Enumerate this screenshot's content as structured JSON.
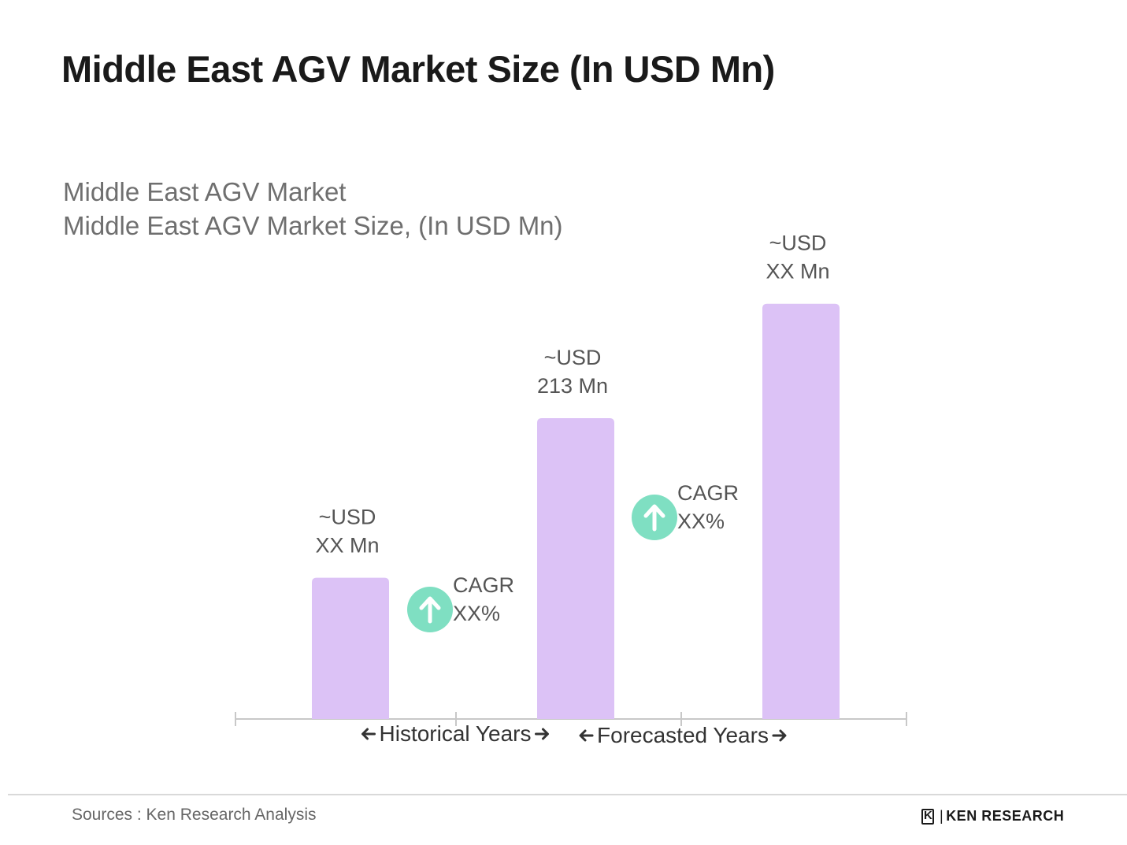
{
  "title": "Middle East AGV Market Size (In USD Mn)",
  "subtitle_line1": "Middle East AGV Market",
  "subtitle_line2": "Middle East AGV Market Size, (In USD Mn)",
  "colors": {
    "bar": "#dcc2f6",
    "cagr_circle": "#7fdfc2",
    "axis": "#c8c8c8"
  },
  "chart_data": {
    "type": "bar",
    "title": "Middle East AGV Market Size (In USD Mn)",
    "categories": [
      "",
      "",
      ""
    ],
    "values": [
      100,
      213,
      294
    ],
    "bar_labels": [
      [
        "~USD",
        "XX Mn"
      ],
      [
        "~USD",
        "213 Mn"
      ],
      [
        "~USD",
        "XX Mn"
      ]
    ],
    "cagr": [
      {
        "label": "CAGR",
        "value": "XX%",
        "icon": "arrow-up-icon"
      },
      {
        "label": "CAGR",
        "value": "XX%",
        "icon": "arrow-up-icon"
      }
    ],
    "periods": [
      {
        "label": "Historical Years"
      },
      {
        "label": "Forecasted Years"
      }
    ],
    "ylim": [
      0,
      310
    ],
    "grid": false
  },
  "footer": {
    "sources": "Sources : Ken Research Analysis",
    "brand_text": "KEN RESEARCH",
    "brand_icon": "ken-research-logo-icon"
  }
}
